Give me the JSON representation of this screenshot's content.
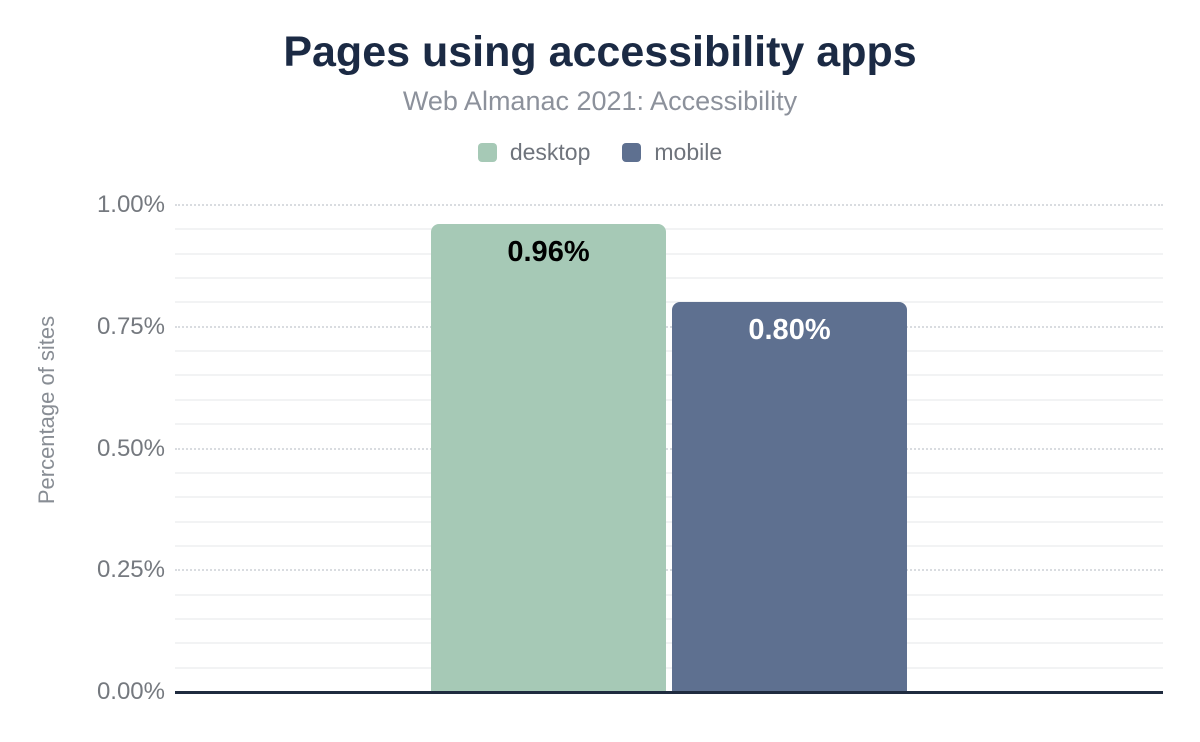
{
  "chart": {
    "title": "Pages using accessibility apps",
    "subtitle": "Web Almanac 2021: Accessibility"
  },
  "palette": {
    "title_color": "#1b2a44",
    "subtitle_color": "#8c919b",
    "tick_label_color": "#75797f",
    "y_axis_title_color": "#888d94",
    "legend_label_color": "#6f747c",
    "axis_baseline_color": "#1f2b3f",
    "major_gridline_color": "#d9dce0",
    "minor_gridline_color": "#f2f3f4",
    "background": "#ffffff"
  },
  "chart_data": {
    "type": "bar",
    "title": "Pages using accessibility apps",
    "subtitle": "Web Almanac 2021: Accessibility",
    "categories": [
      "desktop",
      "mobile"
    ],
    "series": [
      {
        "name": "desktop",
        "value": 0.96,
        "label": "0.96%",
        "color": "#a6c9b6",
        "label_color": "#000000"
      },
      {
        "name": "mobile",
        "value": 0.8,
        "label": "0.80%",
        "color": "#5e7090",
        "label_color": "#ffffff"
      }
    ],
    "xlabel": "",
    "ylabel": "Percentage of sites",
    "ylim": [
      0,
      1
    ],
    "yticks": [
      0,
      0.25,
      0.5,
      0.75,
      1.0
    ],
    "ytick_labels": [
      "0.00%",
      "0.25%",
      "0.50%",
      "0.75%",
      "1.00%"
    ],
    "minor_step": 0.05,
    "grid": "major: dotted horizontal; minor: faint solid horizontal",
    "legend_position": "top",
    "units": "percent"
  }
}
